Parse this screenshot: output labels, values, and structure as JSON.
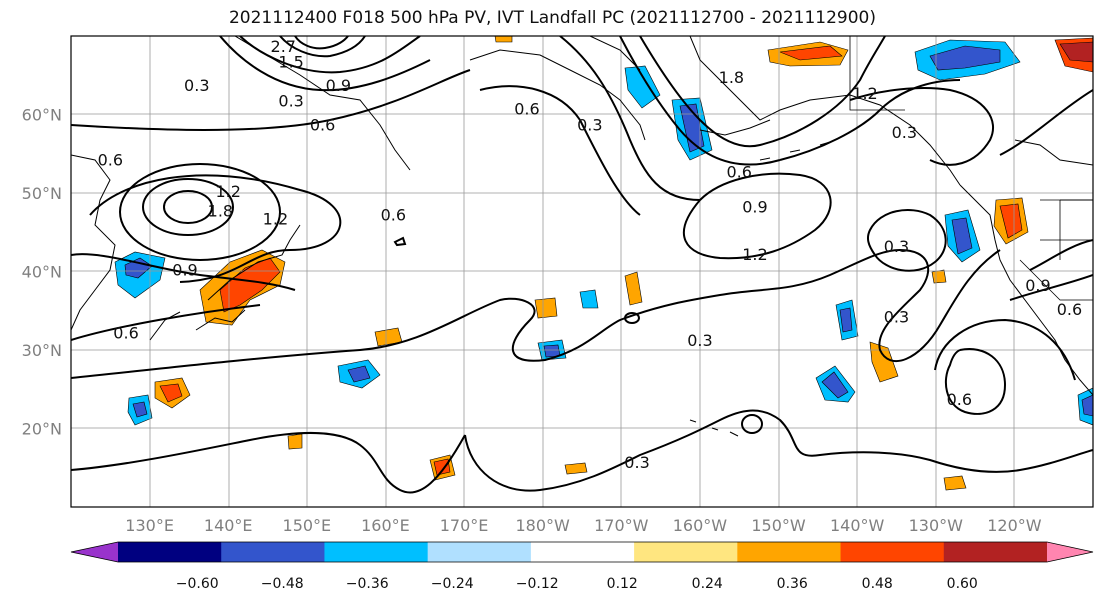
{
  "title": "2021112400 F018 500 hPa PV, IVT Landfall PC (2021112700 - 2021112900)",
  "map": {
    "lon_range": [
      120,
      250
    ],
    "lat_range": [
      10,
      70
    ],
    "lon_ticks": [
      {
        "lon": 130,
        "label": "130°E"
      },
      {
        "lon": 140,
        "label": "140°E"
      },
      {
        "lon": 150,
        "label": "150°E"
      },
      {
        "lon": 160,
        "label": "160°E"
      },
      {
        "lon": 170,
        "label": "170°E"
      },
      {
        "lon": 180,
        "label": "180°W"
      },
      {
        "lon": 190,
        "label": "170°W"
      },
      {
        "lon": 200,
        "label": "160°W"
      },
      {
        "lon": 210,
        "label": "150°W"
      },
      {
        "lon": 220,
        "label": "140°W"
      },
      {
        "lon": 230,
        "label": "130°W"
      },
      {
        "lon": 240,
        "label": "120°W"
      }
    ],
    "lat_ticks": [
      {
        "lat": 60,
        "label": "60°N"
      },
      {
        "lat": 50,
        "label": "50°N"
      },
      {
        "lat": 40,
        "label": "40°N"
      },
      {
        "lat": 30,
        "label": "30°N"
      },
      {
        "lat": 20,
        "label": "20°N"
      }
    ],
    "grid": true,
    "contour_labels": [
      {
        "text": "0.3",
        "lon": 136,
        "lat": 63.5
      },
      {
        "text": "0.9",
        "lon": 154,
        "lat": 63.5
      },
      {
        "text": "0.3",
        "lon": 148,
        "lat": 61.5
      },
      {
        "text": "0.6",
        "lon": 152,
        "lat": 58.5
      },
      {
        "text": "2.7",
        "lon": 147,
        "lat": 68.5
      },
      {
        "text": "1.5",
        "lon": 148,
        "lat": 66.5
      },
      {
        "text": "0.6",
        "lon": 125,
        "lat": 54
      },
      {
        "text": "1.2",
        "lon": 140,
        "lat": 50
      },
      {
        "text": "1.8",
        "lon": 139,
        "lat": 47.5
      },
      {
        "text": "1.2",
        "lon": 146,
        "lat": 46.5
      },
      {
        "text": "0.9",
        "lon": 134.5,
        "lat": 40
      },
      {
        "text": "0.6",
        "lon": 127,
        "lat": 32
      },
      {
        "text": "0.6",
        "lon": 161,
        "lat": 47
      },
      {
        "text": "0.6",
        "lon": 178,
        "lat": 60.5
      },
      {
        "text": "0.3",
        "lon": 186,
        "lat": 58.5
      },
      {
        "text": "1.8",
        "lon": 204,
        "lat": 64.5
      },
      {
        "text": "1.2",
        "lon": 221,
        "lat": 62.5
      },
      {
        "text": "0.6",
        "lon": 205,
        "lat": 52.5
      },
      {
        "text": "0.9",
        "lon": 207,
        "lat": 48
      },
      {
        "text": "1.2",
        "lon": 207,
        "lat": 42
      },
      {
        "text": "0.3",
        "lon": 226,
        "lat": 57.5
      },
      {
        "text": "0.3",
        "lon": 225,
        "lat": 43
      },
      {
        "text": "0.3",
        "lon": 225,
        "lat": 34
      },
      {
        "text": "0.3",
        "lon": 200,
        "lat": 31
      },
      {
        "text": "0.3",
        "lon": 192,
        "lat": 15.5
      },
      {
        "text": "0.6",
        "lon": 233,
        "lat": 23.5
      },
      {
        "text": "0.9",
        "lon": 243,
        "lat": 38
      },
      {
        "text": "0.6",
        "lon": 247,
        "lat": 35
      }
    ],
    "contours_color": "#000000",
    "land_edge_color": "#000000"
  },
  "colorbar": {
    "labels": [
      "−0.60",
      "−0.48",
      "−0.36",
      "−0.24",
      "−0.12",
      "0.12",
      "0.24",
      "0.36",
      "0.48",
      "0.60"
    ],
    "colors": [
      "#9933cc",
      "#000080",
      "#3355cc",
      "#00bfff",
      "#b0e0ff",
      "#ffffff",
      "#ffe680",
      "#ffa500",
      "#ff4500",
      "#b22222",
      "#ff85b0"
    ]
  },
  "shading": {
    "positive_colors": [
      "#ffe680",
      "#ffa500",
      "#ff4500",
      "#b22222"
    ],
    "negative_colors": [
      "#b0e0ff",
      "#00bfff",
      "#3355cc",
      "#000080"
    ]
  }
}
